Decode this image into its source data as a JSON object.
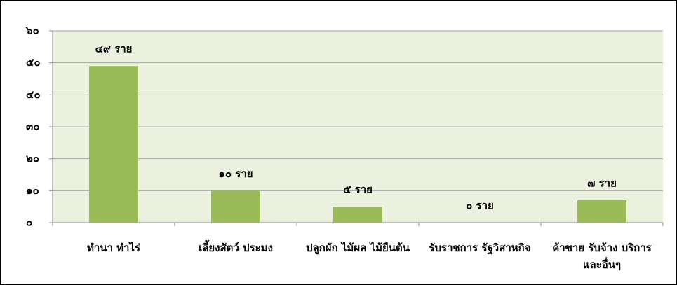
{
  "chart_data": {
    "type": "bar",
    "categories": [
      "ทำนา ทำไร่",
      "เลี้ยงสัตว์ ประมง",
      "ปลูกผัก ไม้ผล ไม้ยืนต้น",
      "รับราชการ รัฐวิสาหกิจ",
      "ค้าขาย รับจ้าง บริการ และอื่นๆ"
    ],
    "values": [
      49,
      10,
      5,
      0,
      7
    ],
    "value_labels": [
      "๔๙ ราย",
      "๑๐ ราย",
      "๕ ราย",
      "๐ ราย",
      "๗ ราย"
    ],
    "color": "#9bbb59",
    "ylim": [
      0,
      60
    ],
    "yticks": [
      {
        "value": 0,
        "label": "๐"
      },
      {
        "value": 10,
        "label": "๑๐"
      },
      {
        "value": 20,
        "label": "๒๐"
      },
      {
        "value": 30,
        "label": "๓๐"
      },
      {
        "value": 40,
        "label": "๔๐"
      },
      {
        "value": 50,
        "label": "๕๐"
      },
      {
        "value": 60,
        "label": "๖๐"
      }
    ],
    "grid": true
  }
}
